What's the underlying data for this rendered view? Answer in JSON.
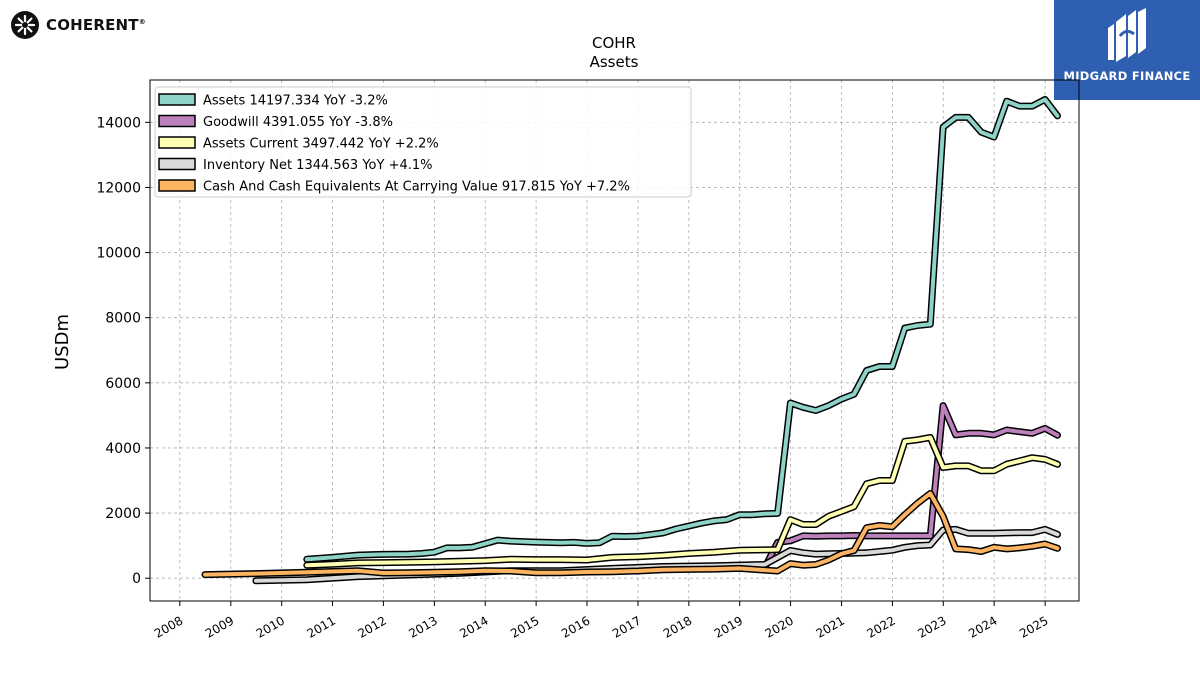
{
  "branding": {
    "company_logo_text": "COHERENT",
    "company_logo_mark": "®",
    "badge_text": "MIDGARD FINANCE",
    "badge_color": "#2f5fb0"
  },
  "chart_data": {
    "type": "line",
    "title": "COHR",
    "subtitle": "Assets",
    "xlabel": "",
    "ylabel": "USDm",
    "xlim": [
      "2007-06-01",
      "2025-09-01"
    ],
    "ylim": [
      -700,
      15300
    ],
    "yticks": [
      0,
      2000,
      4000,
      6000,
      8000,
      10000,
      12000,
      14000
    ],
    "xticks": [
      "2008",
      "2009",
      "2010",
      "2011",
      "2012",
      "2013",
      "2014",
      "2015",
      "2016",
      "2017",
      "2018",
      "2019",
      "2020",
      "2021",
      "2022",
      "2023",
      "2024",
      "2025"
    ],
    "grid": true,
    "legend_position": "top-left",
    "series": [
      {
        "name": "Assets",
        "legend_label": "Assets  14197.334 YoY -3.2%",
        "color": "#8dd3c7",
        "points": [
          [
            "2010-06-30",
            580
          ],
          [
            "2010-12-31",
            640
          ],
          [
            "2011-06-30",
            710
          ],
          [
            "2011-12-31",
            730
          ],
          [
            "2012-06-30",
            740
          ],
          [
            "2012-09-30",
            760
          ],
          [
            "2012-12-31",
            800
          ],
          [
            "2013-03-31",
            930
          ],
          [
            "2013-06-30",
            930
          ],
          [
            "2013-09-30",
            950
          ],
          [
            "2014-03-31",
            1170
          ],
          [
            "2014-06-30",
            1140
          ],
          [
            "2014-12-31",
            1110
          ],
          [
            "2015-06-30",
            1090
          ],
          [
            "2015-09-30",
            1100
          ],
          [
            "2015-12-31",
            1070
          ],
          [
            "2016-03-31",
            1090
          ],
          [
            "2016-06-30",
            1290
          ],
          [
            "2016-09-30",
            1280
          ],
          [
            "2016-12-31",
            1290
          ],
          [
            "2017-03-31",
            1340
          ],
          [
            "2017-06-30",
            1390
          ],
          [
            "2017-09-30",
            1510
          ],
          [
            "2017-12-31",
            1600
          ],
          [
            "2018-03-31",
            1690
          ],
          [
            "2018-06-30",
            1760
          ],
          [
            "2018-09-30",
            1800
          ],
          [
            "2018-12-31",
            1950
          ],
          [
            "2019-03-31",
            1950
          ],
          [
            "2019-06-30",
            1980
          ],
          [
            "2019-09-30",
            1990
          ],
          [
            "2019-12-31",
            5380
          ],
          [
            "2020-03-31",
            5250
          ],
          [
            "2020-06-30",
            5150
          ],
          [
            "2020-09-30",
            5300
          ],
          [
            "2020-12-31",
            5500
          ],
          [
            "2021-03-31",
            5650
          ],
          [
            "2021-06-30",
            6380
          ],
          [
            "2021-09-30",
            6500
          ],
          [
            "2021-12-31",
            6500
          ],
          [
            "2022-03-31",
            7680
          ],
          [
            "2022-06-30",
            7760
          ],
          [
            "2022-09-30",
            7800
          ],
          [
            "2022-12-31",
            13850
          ],
          [
            "2023-03-31",
            14150
          ],
          [
            "2023-06-30",
            14150
          ],
          [
            "2023-09-30",
            13700
          ],
          [
            "2023-12-31",
            13550
          ],
          [
            "2024-03-31",
            14650
          ],
          [
            "2024-06-30",
            14500
          ],
          [
            "2024-09-30",
            14500
          ],
          [
            "2024-12-31",
            14700
          ],
          [
            "2025-03-31",
            14197
          ]
        ]
      },
      {
        "name": "Goodwill",
        "legend_label": "Goodwill  4391.055 YoY -3.8%",
        "color": "#bc80bd",
        "points": [
          [
            "2019-06-30",
            330
          ],
          [
            "2019-09-30",
            1100
          ],
          [
            "2019-12-31",
            1150
          ],
          [
            "2020-03-31",
            1300
          ],
          [
            "2020-06-30",
            1290
          ],
          [
            "2020-09-30",
            1300
          ],
          [
            "2020-12-31",
            1300
          ],
          [
            "2021-03-31",
            1310
          ],
          [
            "2021-06-30",
            1300
          ],
          [
            "2021-09-30",
            1300
          ],
          [
            "2021-12-31",
            1300
          ],
          [
            "2022-03-31",
            1300
          ],
          [
            "2022-06-30",
            1300
          ],
          [
            "2022-09-30",
            1300
          ],
          [
            "2022-12-31",
            5300
          ],
          [
            "2023-03-31",
            4400
          ],
          [
            "2023-06-30",
            4450
          ],
          [
            "2023-09-30",
            4450
          ],
          [
            "2023-12-31",
            4400
          ],
          [
            "2024-03-31",
            4550
          ],
          [
            "2024-06-30",
            4500
          ],
          [
            "2024-09-30",
            4450
          ],
          [
            "2024-12-31",
            4600
          ],
          [
            "2025-03-31",
            4391
          ]
        ]
      },
      {
        "name": "Assets Current",
        "legend_label": "Assets Current  3497.442 YoY +2.2%",
        "color": "#ffffb3",
        "points": [
          [
            "2010-06-30",
            400
          ],
          [
            "2010-12-31",
            430
          ],
          [
            "2011-06-30",
            470
          ],
          [
            "2011-12-31",
            480
          ],
          [
            "2012-06-30",
            490
          ],
          [
            "2012-12-31",
            500
          ],
          [
            "2013-06-30",
            520
          ],
          [
            "2013-12-31",
            540
          ],
          [
            "2014-06-30",
            580
          ],
          [
            "2014-12-31",
            570
          ],
          [
            "2015-06-30",
            570
          ],
          [
            "2015-12-31",
            560
          ],
          [
            "2016-06-30",
            640
          ],
          [
            "2016-12-31",
            660
          ],
          [
            "2017-06-30",
            700
          ],
          [
            "2017-12-31",
            760
          ],
          [
            "2018-06-30",
            800
          ],
          [
            "2018-12-31",
            860
          ],
          [
            "2019-06-30",
            870
          ],
          [
            "2019-09-30",
            880
          ],
          [
            "2019-12-31",
            1800
          ],
          [
            "2020-03-31",
            1650
          ],
          [
            "2020-06-30",
            1650
          ],
          [
            "2020-09-30",
            1900
          ],
          [
            "2020-12-31",
            2050
          ],
          [
            "2021-03-31",
            2200
          ],
          [
            "2021-06-30",
            2900
          ],
          [
            "2021-09-30",
            3000
          ],
          [
            "2021-12-31",
            3000
          ],
          [
            "2022-03-31",
            4200
          ],
          [
            "2022-06-30",
            4250
          ],
          [
            "2022-09-30",
            4320
          ],
          [
            "2022-12-31",
            3400
          ],
          [
            "2023-03-31",
            3450
          ],
          [
            "2023-06-30",
            3450
          ],
          [
            "2023-09-30",
            3300
          ],
          [
            "2023-12-31",
            3300
          ],
          [
            "2024-03-31",
            3500
          ],
          [
            "2024-06-30",
            3600
          ],
          [
            "2024-09-30",
            3700
          ],
          [
            "2024-12-31",
            3650
          ],
          [
            "2025-03-31",
            3497
          ]
        ]
      },
      {
        "name": "Inventory Net",
        "legend_label": "Inventory Net  1344.563 YoY +4.1%",
        "color": "#d9d9d9",
        "points": [
          [
            "2009-06-30",
            -80
          ],
          [
            "2010-06-30",
            -50
          ],
          [
            "2011-06-30",
            50
          ],
          [
            "2012-06-30",
            100
          ],
          [
            "2013-06-30",
            150
          ],
          [
            "2014-06-30",
            230
          ],
          [
            "2015-06-30",
            230
          ],
          [
            "2016-06-30",
            300
          ],
          [
            "2017-06-30",
            360
          ],
          [
            "2018-06-30",
            380
          ],
          [
            "2019-06-30",
            420
          ],
          [
            "2019-12-31",
            850
          ],
          [
            "2020-03-31",
            780
          ],
          [
            "2020-06-30",
            740
          ],
          [
            "2020-09-30",
            750
          ],
          [
            "2020-12-31",
            760
          ],
          [
            "2021-06-30",
            780
          ],
          [
            "2021-12-31",
            860
          ],
          [
            "2022-03-31",
            950
          ],
          [
            "2022-06-30",
            1000
          ],
          [
            "2022-09-30",
            1020
          ],
          [
            "2022-12-31",
            1480
          ],
          [
            "2023-03-31",
            1500
          ],
          [
            "2023-06-30",
            1380
          ],
          [
            "2023-12-31",
            1380
          ],
          [
            "2024-06-30",
            1400
          ],
          [
            "2024-09-30",
            1400
          ],
          [
            "2024-12-31",
            1500
          ],
          [
            "2025-03-31",
            1345
          ]
        ]
      },
      {
        "name": "Cash And Cash Equivalents At Carrying Value",
        "legend_label": "Cash And Cash Equivalents At Carrying Value  917.815 YoY +7.2%",
        "color": "#fdb462",
        "points": [
          [
            "2008-06-30",
            110
          ],
          [
            "2009-06-30",
            140
          ],
          [
            "2010-06-30",
            180
          ],
          [
            "2011-06-30",
            230
          ],
          [
            "2011-12-31",
            160
          ],
          [
            "2012-06-30",
            170
          ],
          [
            "2012-12-31",
            180
          ],
          [
            "2013-06-30",
            200
          ],
          [
            "2013-12-31",
            230
          ],
          [
            "2014-06-30",
            220
          ],
          [
            "2014-12-31",
            170
          ],
          [
            "2015-06-30",
            170
          ],
          [
            "2015-12-31",
            190
          ],
          [
            "2016-06-30",
            200
          ],
          [
            "2016-12-31",
            220
          ],
          [
            "2017-06-30",
            260
          ],
          [
            "2017-12-31",
            270
          ],
          [
            "2018-06-30",
            280
          ],
          [
            "2018-12-31",
            300
          ],
          [
            "2019-06-30",
            250
          ],
          [
            "2019-09-30",
            220
          ],
          [
            "2019-12-31",
            450
          ],
          [
            "2020-03-31",
            400
          ],
          [
            "2020-06-30",
            420
          ],
          [
            "2020-09-30",
            560
          ],
          [
            "2020-12-31",
            750
          ],
          [
            "2021-03-31",
            850
          ],
          [
            "2021-06-30",
            1550
          ],
          [
            "2021-09-30",
            1620
          ],
          [
            "2021-12-31",
            1580
          ],
          [
            "2022-03-31",
            1950
          ],
          [
            "2022-06-30",
            2300
          ],
          [
            "2022-09-30",
            2600
          ],
          [
            "2022-12-31",
            1900
          ],
          [
            "2023-03-31",
            900
          ],
          [
            "2023-06-30",
            880
          ],
          [
            "2023-09-30",
            820
          ],
          [
            "2023-12-31",
            950
          ],
          [
            "2024-03-31",
            900
          ],
          [
            "2024-06-30",
            930
          ],
          [
            "2024-09-30",
            980
          ],
          [
            "2024-12-31",
            1050
          ],
          [
            "2025-03-31",
            918
          ]
        ]
      }
    ]
  }
}
